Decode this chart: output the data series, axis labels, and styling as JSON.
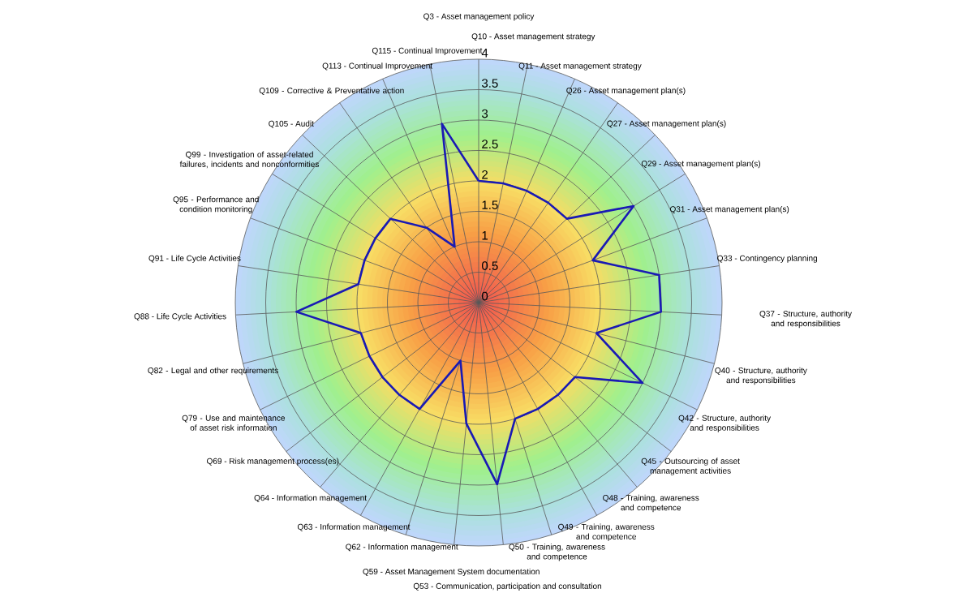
{
  "chart_data": {
    "type": "radar",
    "categories": [
      "Q3 - Asset management policy",
      "Q10 - Asset management strategy",
      "Q11 - Asset management strategy",
      "Q26 - Asset management plan(s)",
      "Q27 - Asset management plan(s)",
      "Q29 - Asset management plan(s)",
      "Q31 - Asset management plan(s)",
      "Q33 - Contingency planning",
      "Q37 - Structure, authority and responsibilities",
      "Q40 - Structure, authority and responsibilities",
      "Q42 - Structure, authority and responsibilities",
      "Q45 - Outsourcing of asset management activities",
      "Q48 - Training, awareness and competence",
      "Q49 - Training, awareness and competence",
      "Q50 - Training, awareness and competence",
      "Q53 - Communication, participation and consultation",
      "Q59 - Asset Management System documentation",
      "Q62 - Information management",
      "Q63 - Information management",
      "Q64 - Information management",
      "Q69 - Risk management process(es)",
      "Q79 - Use and maintenance of asset risk information",
      "Q82 - Legal and other requirements",
      "Q88 - Life Cycle Activities",
      "Q91 - Life Cycle Activities",
      "Q95 - Performance and condition monitoring",
      "Q99 - Investigation of asset-related failures, incidents and nonconformities",
      "Q105 - Audit",
      "Q109 - Corrective & Preventative action",
      "Q113 - Continual Improvement",
      "Q115 - Continual Improvement"
    ],
    "series": [
      {
        "color": "#1a1ab4",
        "values": [
          2,
          2,
          2,
          2,
          2,
          3,
          2,
          3,
          3,
          2,
          3,
          2,
          2,
          2,
          2,
          3,
          2,
          1,
          2,
          2,
          2,
          2,
          2,
          3,
          2,
          2,
          2,
          2,
          1.5,
          1,
          3
        ]
      }
    ],
    "ylim": [
      0,
      4
    ],
    "yticks": [
      0,
      0.5,
      1,
      1.5,
      2,
      2.5,
      3,
      3.5,
      4
    ],
    "grid": true
  }
}
